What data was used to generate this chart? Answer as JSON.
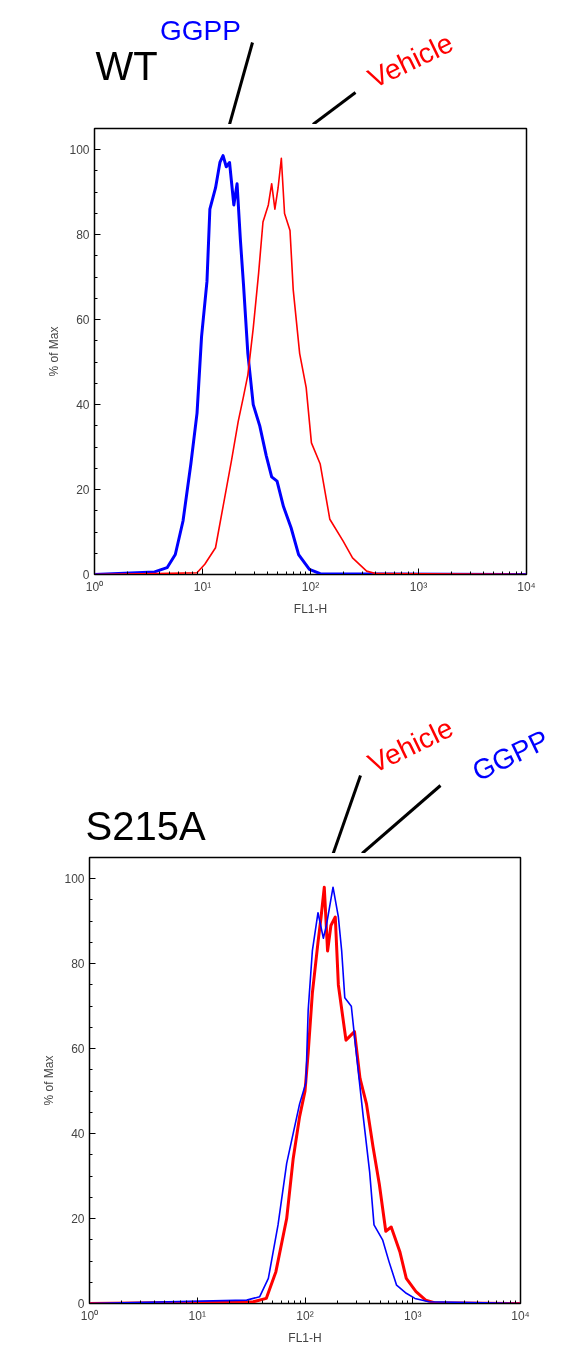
{
  "chart_data": [
    {
      "type": "line",
      "title": "WT",
      "xlabel": "FL1-H",
      "ylabel": "% of Max",
      "log": "x",
      "xlim": [
        1,
        10000
      ],
      "ylim": [
        0,
        105
      ],
      "xticks": [
        {
          "value": 1,
          "label": "10⁰"
        },
        {
          "value": 10,
          "label": "10¹"
        },
        {
          "value": 100,
          "label": "10²"
        },
        {
          "value": 1000,
          "label": "10³"
        },
        {
          "value": 10000,
          "label": "10⁴"
        }
      ],
      "yticks": [
        0,
        20,
        40,
        60,
        80,
        100
      ],
      "series": [
        {
          "name": "GGPP",
          "color": "#0000ff",
          "x": [
            1,
            3.6,
            4.7,
            5.6,
            6.6,
            7.8,
            8.9,
            9.8,
            11,
            11.7,
            13.2,
            14.5,
            15.5,
            16.6,
            17.8,
            19.5,
            20.9,
            22.4,
            24,
            26.3,
            29.5,
            33.9,
            38.9,
            43.7,
            49,
            56.2,
            66.1,
            77.6,
            97.7,
            123,
            10000
          ],
          "values": [
            0,
            0.6,
            1.6,
            4.7,
            12.6,
            26,
            38,
            56,
            69,
            86,
            91,
            97,
            98.6,
            96,
            97,
            87,
            92,
            79,
            68,
            52,
            40,
            35,
            28,
            23,
            22,
            16,
            11,
            4.7,
            1.2,
            0.2,
            0
          ]
        },
        {
          "name": "Vehicle",
          "color": "#ff0000",
          "x": [
            1,
            3.8,
            8.9,
            10.5,
            13.2,
            15.5,
            18.6,
            21.4,
            24,
            26.3,
            29.5,
            33.1,
            36.3,
            40.7,
            43.7,
            46.8,
            50.1,
            53.7,
            57.5,
            64.6,
            69.2,
            79.4,
            91.2,
            102,
            123,
            151,
            200,
            245,
            331,
            407,
            10000
          ],
          "values": [
            0,
            0.2,
            0.4,
            2.4,
            6.3,
            16,
            27,
            36,
            42,
            47,
            58,
            71,
            83,
            87,
            92,
            86,
            91,
            98,
            85,
            81,
            67,
            52,
            44,
            31,
            26,
            13,
            7.9,
            3.9,
            0.8,
            0.2,
            0
          ]
        }
      ]
    },
    {
      "type": "line",
      "title": "S215A",
      "xlabel": "FL1-H",
      "ylabel": "% of Max",
      "log": "x",
      "xlim": [
        1,
        10000
      ],
      "ylim": [
        0,
        105
      ],
      "xticks": [
        {
          "value": 1,
          "label": "10⁰"
        },
        {
          "value": 10,
          "label": "10¹"
        },
        {
          "value": 100,
          "label": "10²"
        },
        {
          "value": 1000,
          "label": "10³"
        },
        {
          "value": 10000,
          "label": "10⁴"
        }
      ],
      "yticks": [
        0,
        20,
        40,
        60,
        80,
        100
      ],
      "series": [
        {
          "name": "Vehicle",
          "color": "#ff0000",
          "x": [
            1,
            33.1,
            43.7,
            53.7,
            67.6,
            77.6,
            89.1,
            100,
            107,
            117,
            132,
            141,
            151,
            162,
            174,
            191,
            204,
            240,
            288,
            324,
            372,
            427,
            490,
            562,
            631,
            759,
            871,
            1072,
            1318,
            1585,
            10000
          ],
          "values": [
            0,
            0.4,
            1.2,
            7.5,
            20,
            34,
            44,
            50,
            59,
            73,
            85,
            91,
            98,
            83,
            89,
            91,
            75,
            62,
            64,
            53,
            47,
            37,
            28,
            17,
            18,
            12.2,
            5.9,
            2.8,
            0.8,
            0.2,
            0
          ]
        },
        {
          "name": "GGPP",
          "color": "#0000ff",
          "x": [
            1,
            28.8,
            38,
            45.7,
            56.2,
            67.6,
            77.6,
            89.1,
            102,
            107,
            117,
            132,
            148,
            158,
            182,
            204,
            219,
            234,
            269,
            302,
            347,
            398,
            437,
            525,
            603,
            708,
            871,
            1047,
            1413,
            10000
          ],
          "values": [
            0,
            0.8,
            1.6,
            5.9,
            18.5,
            33,
            40,
            47,
            52,
            69,
            83,
            92,
            86,
            89,
            98,
            91,
            83,
            72,
            70,
            58,
            44,
            31,
            18.5,
            15,
            9.8,
            4.3,
            2.4,
            1.2,
            0.4,
            0
          ]
        }
      ]
    }
  ]
}
